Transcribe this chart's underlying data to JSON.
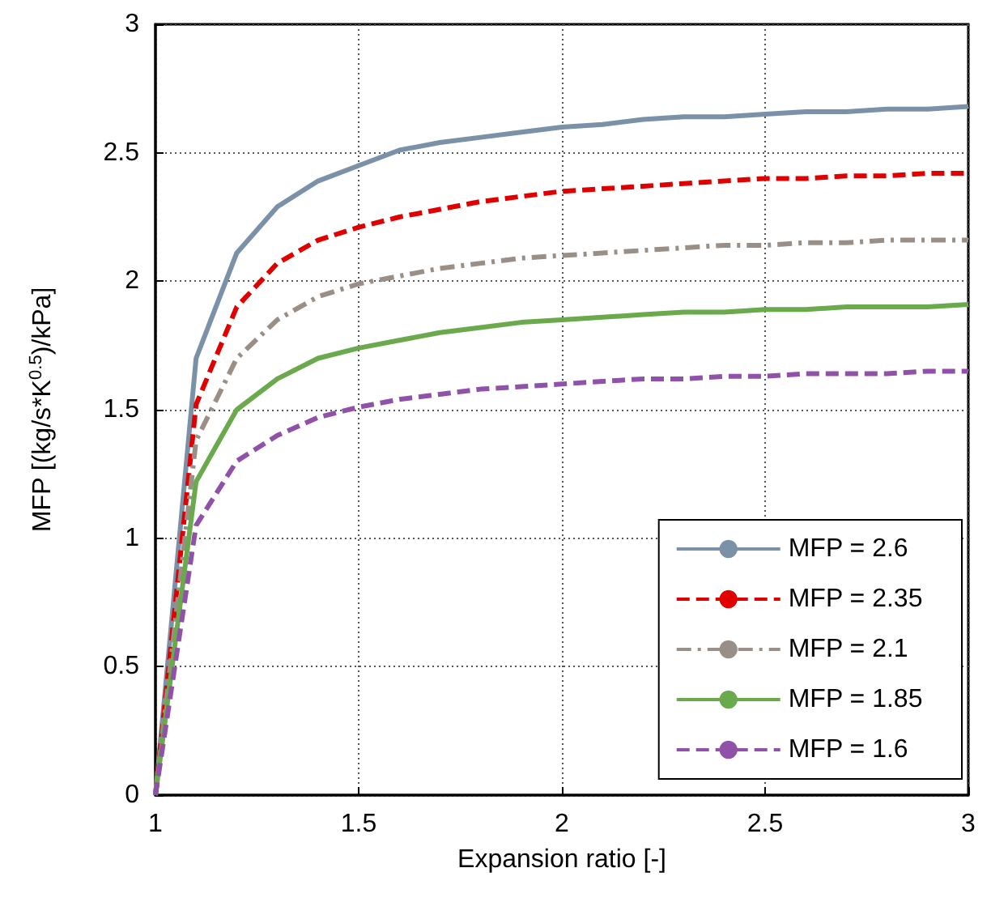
{
  "chart_data": {
    "type": "line",
    "xlabel": "Expansion ratio [-]",
    "ylabel": "MFP [(kg/s*K$^{0.5}$)/kPa]",
    "x": [
      1,
      1.1,
      1.2,
      1.3,
      1.4,
      1.5,
      1.6,
      1.7,
      1.8,
      1.9,
      2,
      2.1,
      2.2,
      2.3,
      2.4,
      2.5,
      2.6,
      2.7,
      2.8,
      2.9,
      3
    ],
    "series": [
      {
        "name": "MFP = 2.6",
        "color": "#7a91a8",
        "line_style": "solid",
        "values": [
          0,
          1.7,
          2.11,
          2.29,
          2.39,
          2.45,
          2.51,
          2.54,
          2.56,
          2.58,
          2.6,
          2.61,
          2.63,
          2.64,
          2.64,
          2.65,
          2.66,
          2.66,
          2.67,
          2.67,
          2.68
        ]
      },
      {
        "name": "MFP = 2.35",
        "color": "#e00000",
        "line_style": "dashed",
        "values": [
          0,
          1.52,
          1.9,
          2.07,
          2.16,
          2.21,
          2.25,
          2.28,
          2.31,
          2.33,
          2.35,
          2.36,
          2.37,
          2.38,
          2.39,
          2.4,
          2.4,
          2.41,
          2.41,
          2.42,
          2.42
        ]
      },
      {
        "name": "MFP = 2.1",
        "color": "#9a8f87",
        "line_style": "dashdot",
        "values": [
          0,
          1.38,
          1.7,
          1.85,
          1.94,
          1.99,
          2.02,
          2.05,
          2.07,
          2.09,
          2.1,
          2.11,
          2.12,
          2.13,
          2.14,
          2.14,
          2.15,
          2.15,
          2.16,
          2.16,
          2.16
        ]
      },
      {
        "name": "MFP = 1.85",
        "color": "#6aaa4c",
        "line_style": "solid",
        "values": [
          0,
          1.22,
          1.5,
          1.62,
          1.7,
          1.74,
          1.77,
          1.8,
          1.82,
          1.84,
          1.85,
          1.86,
          1.87,
          1.88,
          1.88,
          1.89,
          1.89,
          1.9,
          1.9,
          1.9,
          1.91
        ]
      },
      {
        "name": "MFP = 1.6",
        "color": "#9052a8",
        "line_style": "dashed",
        "values": [
          0,
          1.05,
          1.3,
          1.4,
          1.47,
          1.51,
          1.54,
          1.56,
          1.58,
          1.59,
          1.6,
          1.61,
          1.62,
          1.62,
          1.63,
          1.63,
          1.64,
          1.64,
          1.64,
          1.65,
          1.65
        ]
      }
    ],
    "xlim": [
      1,
      3
    ],
    "xticks": [
      1,
      1.5,
      2,
      2.5,
      3
    ],
    "ylim": [
      0,
      3
    ],
    "yticks": [
      0,
      0.5,
      1,
      1.5,
      2,
      2.5,
      3
    ],
    "grid": true,
    "legend": "bottom right",
    "marker": "none"
  }
}
